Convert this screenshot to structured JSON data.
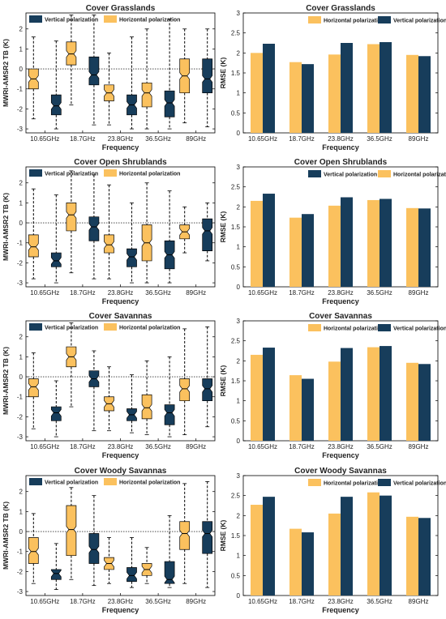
{
  "colors": {
    "horizontal": "#FBC15E",
    "vertical": "#173D5B"
  },
  "chart_data": [
    {
      "type": "box",
      "title": "Cover  Grasslands",
      "xlabel": "Frequency",
      "ylabel": "MWRI-AMSR2 TB (K)",
      "ylim": [
        -3.2,
        2.8
      ],
      "yticks": [
        "-3",
        "-2",
        "-1",
        "0",
        "1",
        "2"
      ],
      "categories": [
        "10.65GHz",
        "18.7GHz",
        "23.8GHz",
        "36.5GHz",
        "89GHz"
      ],
      "legend": [
        "Vertical polarization",
        "Horizontal polarization"
      ],
      "legend_position": "top-left",
      "reference_line": 0,
      "series": [
        {
          "name": "Horizontal polarization",
          "boxes": [
            {
              "whislo": -2.5,
              "q1": -1.0,
              "med": -0.5,
              "q3": 0.0,
              "whishi": 1.6
            },
            {
              "whislo": -1.8,
              "q1": 0.2,
              "med": 0.75,
              "q3": 1.35,
              "whishi": 2.7
            },
            {
              "whislo": -2.8,
              "q1": -1.6,
              "med": -1.2,
              "q3": -0.8,
              "whishi": 0.8
            },
            {
              "whislo": -3.0,
              "q1": -1.9,
              "med": -1.2,
              "q3": -0.7,
              "whishi": 2.0
            },
            {
              "whislo": -2.7,
              "q1": -1.2,
              "med": -0.35,
              "q3": 0.5,
              "whishi": 2.0
            }
          ]
        },
        {
          "name": "Vertical polarization",
          "boxes": [
            {
              "whislo": -3.0,
              "q1": -2.3,
              "med": -1.85,
              "q3": -1.3,
              "whishi": 1.4
            },
            {
              "whislo": -2.8,
              "q1": -0.8,
              "med": -0.3,
              "q3": 0.6,
              "whishi": 2.7
            },
            {
              "whislo": -3.0,
              "q1": -2.3,
              "med": -1.8,
              "q3": -1.3,
              "whishi": 1.6
            },
            {
              "whislo": -3.0,
              "q1": -2.4,
              "med": -1.7,
              "q3": -1.1,
              "whishi": 2.5
            },
            {
              "whislo": -2.9,
              "q1": -1.2,
              "med": -0.5,
              "q3": 0.5,
              "whishi": 2.0
            }
          ]
        }
      ]
    },
    {
      "type": "bar",
      "title": "Cover  Grasslands",
      "xlabel": "Frequency",
      "ylabel": "RMSE (K)",
      "ylim": [
        0,
        3
      ],
      "yticks": [
        "0",
        "0.5",
        "1",
        "1.5",
        "2",
        "2.5",
        "3"
      ],
      "categories": [
        "10.65GHz",
        "18.7GHz",
        "23.8GHz",
        "36.5GHz",
        "89GHz"
      ],
      "legend": [
        "Horizontal polarization",
        "Vertical polarization"
      ],
      "legend_position": "top-right",
      "series": [
        {
          "name": "Horizontal polarization",
          "values": [
            2.0,
            1.77,
            1.96,
            2.22,
            1.95
          ]
        },
        {
          "name": "Vertical polarization",
          "values": [
            2.23,
            1.72,
            2.25,
            2.27,
            1.92
          ]
        }
      ]
    },
    {
      "type": "box",
      "title": "Cover  Open Shrublands",
      "xlabel": "Frequency",
      "ylabel": "MWRI-AMSR2 TB (K)",
      "ylim": [
        -3.2,
        2.8
      ],
      "yticks": [
        "-3",
        "-2",
        "-1",
        "0",
        "1",
        "2"
      ],
      "categories": [
        "10.65GHz",
        "18.7GHz",
        "23.8GHz",
        "36.5GHz",
        "89GHz"
      ],
      "legend": [
        "Vertical polarization",
        "Horizontal polarization"
      ],
      "legend_position": "top-left",
      "reference_line": 0,
      "series": [
        {
          "name": "Horizontal polarization",
          "boxes": [
            {
              "whislo": -2.8,
              "q1": -1.7,
              "med": -1.2,
              "q3": -0.6,
              "whishi": 1.7
            },
            {
              "whislo": -2.5,
              "q1": -0.4,
              "med": 0.4,
              "q3": 1.0,
              "whishi": 2.6
            },
            {
              "whislo": -2.8,
              "q1": -1.5,
              "med": -1.1,
              "q3": -0.6,
              "whishi": 1.9
            },
            {
              "whislo": -3.0,
              "q1": -1.9,
              "med": -1.0,
              "q3": -0.1,
              "whishi": 2.0
            },
            {
              "whislo": -1.5,
              "q1": -0.8,
              "med": -0.45,
              "q3": -0.1,
              "whishi": 0.8
            }
          ]
        },
        {
          "name": "Vertical polarization",
          "boxes": [
            {
              "whislo": -3.0,
              "q1": -2.2,
              "med": -1.9,
              "q3": -1.5,
              "whishi": 1.4
            },
            {
              "whislo": -2.8,
              "q1": -0.9,
              "med": -0.2,
              "q3": 0.3,
              "whishi": 2.4
            },
            {
              "whislo": -3.0,
              "q1": -2.2,
              "med": -1.7,
              "q3": -1.3,
              "whishi": 1.0
            },
            {
              "whislo": -3.0,
              "q1": -2.3,
              "med": -1.6,
              "q3": -0.9,
              "whishi": 1.6
            },
            {
              "whislo": -1.9,
              "q1": -1.4,
              "med": -0.4,
              "q3": 0.2,
              "whishi": 1.0
            }
          ]
        }
      ]
    },
    {
      "type": "bar",
      "title": "Cover  Open Shrublands",
      "xlabel": "Frequency",
      "ylabel": "RMSE (K)",
      "ylim": [
        0,
        3
      ],
      "yticks": [
        "0",
        "0.5",
        "1",
        "1.5",
        "2",
        "2.5",
        "3"
      ],
      "categories": [
        "10.65GHz",
        "18.7GHz",
        "23.8GHz",
        "36.5GHz",
        "89GHz"
      ],
      "legend": [
        "Vertical polarization",
        "Horizontal polarization"
      ],
      "legend_position": "top-right",
      "series": [
        {
          "name": "Horizontal polarization",
          "values": [
            2.15,
            1.73,
            2.03,
            2.17,
            1.97
          ]
        },
        {
          "name": "Vertical polarization",
          "values": [
            2.33,
            1.82,
            2.24,
            2.2,
            1.96
          ]
        }
      ]
    },
    {
      "type": "box",
      "title": "Cover  Savannas",
      "xlabel": "Frequency",
      "ylabel": "MWRI-AMSR2 TB (K)",
      "ylim": [
        -3.2,
        2.8
      ],
      "yticks": [
        "-3",
        "-2",
        "-1",
        "0",
        "1",
        "2"
      ],
      "categories": [
        "10.65GHz",
        "18.7GHz",
        "23.8GHz",
        "36.5GHz",
        "89GHz"
      ],
      "legend": [
        "Vertical polarization",
        "Horizontal polarization"
      ],
      "legend_position": "top-left",
      "reference_line": 0,
      "series": [
        {
          "name": "Horizontal polarization",
          "boxes": [
            {
              "whislo": -2.6,
              "q1": -1.0,
              "med": -0.5,
              "q3": -0.1,
              "whishi": 1.2
            },
            {
              "whislo": -1.5,
              "q1": 0.5,
              "med": 1.0,
              "q3": 1.5,
              "whishi": 2.7
            },
            {
              "whislo": -2.7,
              "q1": -1.7,
              "med": -1.35,
              "q3": -1.0,
              "whishi": 0.5
            },
            {
              "whislo": -2.9,
              "q1": -2.1,
              "med": -1.55,
              "q3": -0.9,
              "whishi": 0.8
            },
            {
              "whislo": -2.9,
              "q1": -1.2,
              "med": -0.6,
              "q3": -0.1,
              "whishi": 2.4
            }
          ]
        },
        {
          "name": "Vertical polarization",
          "boxes": [
            {
              "whislo": -3.0,
              "q1": -2.2,
              "med": -1.8,
              "q3": -1.5,
              "whishi": -0.2
            },
            {
              "whislo": -2.7,
              "q1": -0.5,
              "med": -0.1,
              "q3": 0.3,
              "whishi": 1.3
            },
            {
              "whislo": -2.8,
              "q1": -2.2,
              "med": -1.9,
              "q3": -1.6,
              "whishi": 0.1
            },
            {
              "whislo": -3.0,
              "q1": -2.4,
              "med": -1.8,
              "q3": -1.4,
              "whishi": 1.0
            },
            {
              "whislo": -2.5,
              "q1": -1.2,
              "med": -0.6,
              "q3": -0.1,
              "whishi": 2.5
            }
          ]
        }
      ]
    },
    {
      "type": "bar",
      "title": "Cover  Savannas",
      "xlabel": "Frequency",
      "ylabel": "RMSE (K)",
      "ylim": [
        0,
        3
      ],
      "yticks": [
        "0",
        "0.5",
        "1",
        "1.5",
        "2",
        "2.5",
        "3"
      ],
      "categories": [
        "10.65GHz",
        "18.7GHz",
        "23.8GHz",
        "36.5GHz",
        "89GHz"
      ],
      "legend": [
        "Horizontal polarization",
        "Vertical polarization"
      ],
      "legend_position": "top-right",
      "series": [
        {
          "name": "Horizontal polarization",
          "values": [
            2.15,
            1.64,
            1.98,
            2.34,
            1.95
          ]
        },
        {
          "name": "Vertical polarization",
          "values": [
            2.33,
            1.55,
            2.32,
            2.37,
            1.92
          ]
        }
      ]
    },
    {
      "type": "box",
      "title": "Cover  Woody Savannas",
      "xlabel": "Frequency",
      "ylabel": "MWRI-AMSR2 TB (K)",
      "ylim": [
        -3.2,
        2.8
      ],
      "yticks": [
        "-3",
        "-2",
        "-1",
        "0",
        "1",
        "2"
      ],
      "categories": [
        "10.65GHz",
        "18.7GHz",
        "23.8GHz",
        "36.5GHz",
        "89GHz"
      ],
      "legend": [
        "Vertical polarization",
        "Horizontal polarization"
      ],
      "legend_position": "top-left",
      "reference_line": 0,
      "series": [
        {
          "name": "Horizontal polarization",
          "boxes": [
            {
              "whislo": -2.6,
              "q1": -1.6,
              "med": -1.0,
              "q3": -0.3,
              "whishi": 0.9
            },
            {
              "whislo": -2.4,
              "q1": -1.2,
              "med": 0.1,
              "q3": 1.3,
              "whishi": 2.2
            },
            {
              "whislo": -2.6,
              "q1": -1.9,
              "med": -1.6,
              "q3": -1.3,
              "whishi": -0.3
            },
            {
              "whislo": -2.6,
              "q1": -2.2,
              "med": -1.9,
              "q3": -1.6,
              "whishi": -0.8
            },
            {
              "whislo": -2.6,
              "q1": -0.9,
              "med": -0.1,
              "q3": 0.5,
              "whishi": 2.4
            }
          ]
        },
        {
          "name": "Vertical polarization",
          "boxes": [
            {
              "whislo": -2.9,
              "q1": -2.4,
              "med": -2.1,
              "q3": -1.9,
              "whishi": -0.6
            },
            {
              "whislo": -2.7,
              "q1": -1.6,
              "med": -0.9,
              "q3": -0.1,
              "whishi": 1.8
            },
            {
              "whislo": -2.8,
              "q1": -2.5,
              "med": -2.2,
              "q3": -1.8,
              "whishi": -0.3
            },
            {
              "whislo": -2.8,
              "q1": -2.6,
              "med": -2.4,
              "q3": -1.5,
              "whishi": 0.8
            },
            {
              "whislo": -2.8,
              "q1": -1.1,
              "med": -0.1,
              "q3": 0.5,
              "whishi": 2.5
            }
          ]
        }
      ]
    },
    {
      "type": "bar",
      "title": "Cover  Woody Savannas",
      "xlabel": "Frequency",
      "ylabel": "RMSE (K)",
      "ylim": [
        0,
        3
      ],
      "yticks": [
        "0",
        "0.5",
        "1",
        "1.5",
        "2",
        "2.5",
        "3"
      ],
      "categories": [
        "10.65GHz",
        "18.7GHz",
        "23.8GHz",
        "36.5GHz",
        "89GHz"
      ],
      "legend": [
        "Horizontal polarization",
        "Vertical polarization"
      ],
      "legend_position": "top-right",
      "series": [
        {
          "name": "Horizontal polarization",
          "values": [
            2.27,
            1.67,
            2.05,
            2.58,
            1.97
          ]
        },
        {
          "name": "Vertical polarization",
          "values": [
            2.47,
            1.58,
            2.47,
            2.5,
            1.94
          ]
        }
      ]
    }
  ]
}
